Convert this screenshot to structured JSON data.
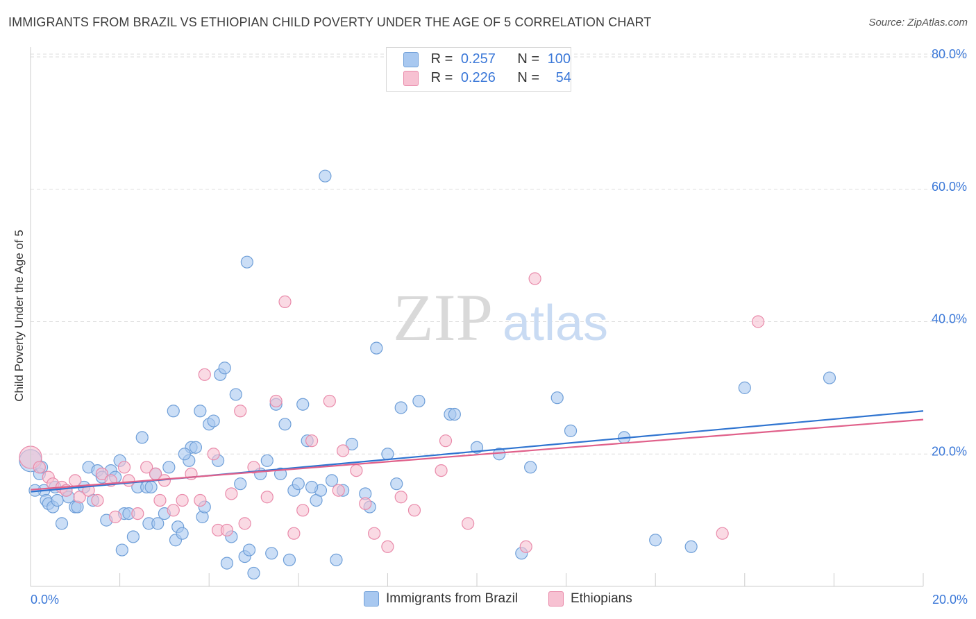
{
  "header": {
    "title": "IMMIGRANTS FROM BRAZIL VS ETHIOPIAN CHILD POVERTY UNDER THE AGE OF 5 CORRELATION CHART",
    "source": "Source: ZipAtlas.com"
  },
  "watermark": {
    "zip": "ZIP",
    "atlas": "atlas"
  },
  "legend": {
    "brazil": {
      "r_label": "R =",
      "r_value": "0.257",
      "n_label": "N =",
      "n_value": "100"
    },
    "ethiopians": {
      "r_label": "R =",
      "r_value": "0.226",
      "n_label": "N =",
      "n_value": "54"
    }
  },
  "bottom_legend": {
    "brazil": "Immigrants from Brazil",
    "ethiopians": "Ethiopians"
  },
  "colors": {
    "brazil_fill": "#a8c8f0",
    "brazil_stroke": "#6f9fd8",
    "brazil_line": "#2f74d0",
    "ethiopians_fill": "#f7c1d2",
    "ethiopians_stroke": "#e98aaa",
    "ethiopians_line": "#e0608a",
    "tick_label": "#3b78d8",
    "grid": "#dddddd"
  },
  "chart_data": {
    "type": "scatter",
    "title": "IMMIGRANTS FROM BRAZIL VS ETHIOPIAN CHILD POVERTY UNDER THE AGE OF 5 CORRELATION CHART",
    "xlabel": "",
    "ylabel": "Child Poverty Under the Age of 5",
    "xlim": [
      0,
      20
    ],
    "ylim": [
      0,
      80
    ],
    "x_tick_labels": [
      {
        "v": 0,
        "label": "0.0%"
      },
      {
        "v": 20,
        "label": "20.0%"
      }
    ],
    "y_tick_labels": [
      {
        "v": 20,
        "label": "20.0%"
      },
      {
        "v": 40,
        "label": "40.0%"
      },
      {
        "v": 60,
        "label": "60.0%"
      },
      {
        "v": 80,
        "label": "80.0%"
      }
    ],
    "grid": true,
    "series": [
      {
        "name": "Immigrants from Brazil",
        "trend": {
          "x": [
            0,
            20
          ],
          "y": [
            14.3,
            26.5
          ]
        },
        "points": [
          [
            0.0,
            19.0
          ],
          [
            0.2,
            17.0
          ],
          [
            0.3,
            14.5
          ],
          [
            0.35,
            13.0
          ],
          [
            0.4,
            12.5
          ],
          [
            0.5,
            12.0
          ],
          [
            0.55,
            15.0
          ],
          [
            0.6,
            13.0
          ],
          [
            0.7,
            9.5
          ],
          [
            0.8,
            14.5
          ],
          [
            0.85,
            13.5
          ],
          [
            1.0,
            12.0
          ],
          [
            1.2,
            15.0
          ],
          [
            1.3,
            18.0
          ],
          [
            1.4,
            13.0
          ],
          [
            1.5,
            17.5
          ],
          [
            1.6,
            16.5
          ],
          [
            1.7,
            10.0
          ],
          [
            1.8,
            17.5
          ],
          [
            1.9,
            16.5
          ],
          [
            2.0,
            19.0
          ],
          [
            2.05,
            5.5
          ],
          [
            2.1,
            11.0
          ],
          [
            2.2,
            11.0
          ],
          [
            2.3,
            7.5
          ],
          [
            2.4,
            15.0
          ],
          [
            2.5,
            22.5
          ],
          [
            2.6,
            15.0
          ],
          [
            2.65,
            9.5
          ],
          [
            2.8,
            17.0
          ],
          [
            2.85,
            9.5
          ],
          [
            3.0,
            11.0
          ],
          [
            3.1,
            18.0
          ],
          [
            3.2,
            26.5
          ],
          [
            3.25,
            7.0
          ],
          [
            3.3,
            9.0
          ],
          [
            3.4,
            8.0
          ],
          [
            3.55,
            19.0
          ],
          [
            3.6,
            21.0
          ],
          [
            3.7,
            21.0
          ],
          [
            3.8,
            26.5
          ],
          [
            3.85,
            10.5
          ],
          [
            3.9,
            12.0
          ],
          [
            4.0,
            24.5
          ],
          [
            4.1,
            25.0
          ],
          [
            4.2,
            19.0
          ],
          [
            4.25,
            32.0
          ],
          [
            4.35,
            33.0
          ],
          [
            4.4,
            3.5
          ],
          [
            4.5,
            7.5
          ],
          [
            4.6,
            29.0
          ],
          [
            4.7,
            15.5
          ],
          [
            4.8,
            4.5
          ],
          [
            4.85,
            49.0
          ],
          [
            4.9,
            5.5
          ],
          [
            5.0,
            2.0
          ],
          [
            5.15,
            17.0
          ],
          [
            5.3,
            19.0
          ],
          [
            5.4,
            5.0
          ],
          [
            5.5,
            27.5
          ],
          [
            5.6,
            17.0
          ],
          [
            5.7,
            24.5
          ],
          [
            5.8,
            4.0
          ],
          [
            5.9,
            14.5
          ],
          [
            6.0,
            15.5
          ],
          [
            6.1,
            27.5
          ],
          [
            6.2,
            22.0
          ],
          [
            6.4,
            13.0
          ],
          [
            6.5,
            14.5
          ],
          [
            6.6,
            62.0
          ],
          [
            6.75,
            16.0
          ],
          [
            6.85,
            4.0
          ],
          [
            7.0,
            14.5
          ],
          [
            7.2,
            21.5
          ],
          [
            7.5,
            14.0
          ],
          [
            7.6,
            12.0
          ],
          [
            7.75,
            36.0
          ],
          [
            8.0,
            20.0
          ],
          [
            8.2,
            15.5
          ],
          [
            8.3,
            27.0
          ],
          [
            8.7,
            28.0
          ],
          [
            9.4,
            26.0
          ],
          [
            9.5,
            26.0
          ],
          [
            10.0,
            21.0
          ],
          [
            10.5,
            20.0
          ],
          [
            11.0,
            5.0
          ],
          [
            11.2,
            18.0
          ],
          [
            11.8,
            28.5
          ],
          [
            12.1,
            23.5
          ],
          [
            13.3,
            22.5
          ],
          [
            14.0,
            7.0
          ],
          [
            14.8,
            6.0
          ],
          [
            16.0,
            30.0
          ],
          [
            17.9,
            31.5
          ],
          [
            0.1,
            14.5
          ],
          [
            0.25,
            18.0
          ],
          [
            1.05,
            12.0
          ],
          [
            2.7,
            15.0
          ],
          [
            3.45,
            20.0
          ],
          [
            6.3,
            15.0
          ]
        ]
      },
      {
        "name": "Ethiopians",
        "trend": {
          "x": [
            0,
            20
          ],
          "y": [
            14.6,
            25.2
          ]
        },
        "points": [
          [
            0.0,
            19.5
          ],
          [
            0.2,
            18.0
          ],
          [
            0.4,
            16.5
          ],
          [
            0.5,
            15.5
          ],
          [
            0.7,
            15.0
          ],
          [
            0.8,
            14.5
          ],
          [
            1.0,
            16.0
          ],
          [
            1.1,
            13.5
          ],
          [
            1.3,
            14.5
          ],
          [
            1.5,
            13.0
          ],
          [
            1.6,
            17.0
          ],
          [
            1.8,
            16.0
          ],
          [
            2.1,
            18.0
          ],
          [
            2.2,
            16.0
          ],
          [
            2.4,
            11.0
          ],
          [
            2.6,
            18.0
          ],
          [
            2.8,
            17.0
          ],
          [
            3.0,
            16.0
          ],
          [
            3.2,
            11.5
          ],
          [
            3.4,
            13.0
          ],
          [
            3.6,
            17.0
          ],
          [
            3.8,
            13.0
          ],
          [
            3.9,
            32.0
          ],
          [
            4.1,
            20.0
          ],
          [
            4.2,
            8.5
          ],
          [
            4.4,
            8.5
          ],
          [
            4.5,
            14.0
          ],
          [
            4.7,
            26.5
          ],
          [
            4.8,
            9.5
          ],
          [
            5.0,
            18.0
          ],
          [
            5.3,
            13.5
          ],
          [
            5.5,
            28.0
          ],
          [
            5.7,
            43.0
          ],
          [
            5.9,
            8.0
          ],
          [
            6.1,
            11.5
          ],
          [
            6.3,
            22.0
          ],
          [
            6.7,
            28.0
          ],
          [
            7.0,
            20.5
          ],
          [
            7.3,
            17.5
          ],
          [
            7.5,
            12.5
          ],
          [
            7.7,
            8.0
          ],
          [
            8.0,
            6.0
          ],
          [
            8.3,
            13.5
          ],
          [
            8.6,
            11.5
          ],
          [
            9.3,
            22.0
          ],
          [
            9.2,
            17.5
          ],
          [
            9.8,
            9.5
          ],
          [
            11.3,
            46.5
          ],
          [
            11.1,
            6.0
          ],
          [
            15.5,
            8.0
          ],
          [
            16.3,
            40.0
          ],
          [
            1.9,
            10.5
          ],
          [
            2.9,
            13.0
          ],
          [
            6.9,
            14.5
          ]
        ]
      }
    ]
  }
}
